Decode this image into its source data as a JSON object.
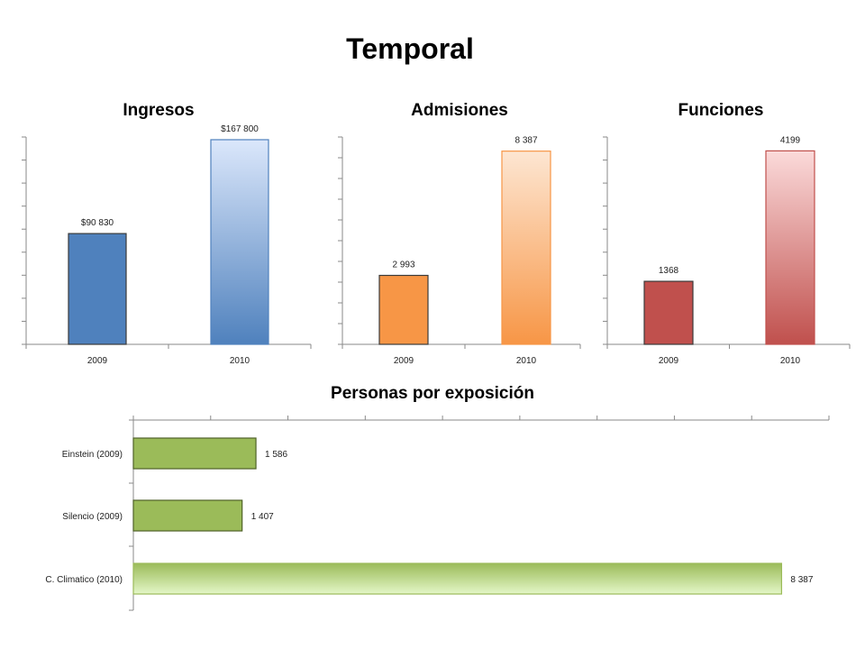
{
  "page": {
    "title": "Temporal"
  },
  "colors": {
    "ingresos": [
      "#4f81bd",
      "#dbe7fb"
    ],
    "admisiones": [
      "#f79646",
      "#fde6d2"
    ],
    "funciones": [
      "#c0504d",
      "#fbdada"
    ],
    "exposicion": [
      "#9bbb59",
      "#e4f7c8"
    ]
  },
  "chart_data": [
    {
      "type": "bar",
      "title": "Ingresos",
      "categories": [
        "2009",
        "2010"
      ],
      "values": [
        90830,
        167800
      ],
      "value_labels": [
        "$90 830",
        "$167 800"
      ],
      "ylim": [
        0,
        170000
      ]
    },
    {
      "type": "bar",
      "title": "Admisiones",
      "categories": [
        "2009",
        "2010"
      ],
      "values": [
        2993,
        8387
      ],
      "value_labels": [
        "2 993",
        "8 387"
      ],
      "ylim": [
        0,
        9000
      ]
    },
    {
      "type": "bar",
      "title": "Funciones",
      "categories": [
        "2009",
        "2010"
      ],
      "values": [
        1368,
        4199
      ],
      "value_labels": [
        "1368",
        "4199"
      ],
      "ylim": [
        0,
        4500
      ]
    },
    {
      "type": "bar",
      "orientation": "horizontal",
      "title": "Personas por exposición",
      "categories": [
        "Einstein (2009)",
        "Silencio (2009)",
        "C. Climatico (2010)"
      ],
      "values": [
        1586,
        1407,
        8387
      ],
      "value_labels": [
        "1 586",
        "1 407",
        "8 387"
      ],
      "xlim": [
        0,
        9000
      ]
    }
  ]
}
